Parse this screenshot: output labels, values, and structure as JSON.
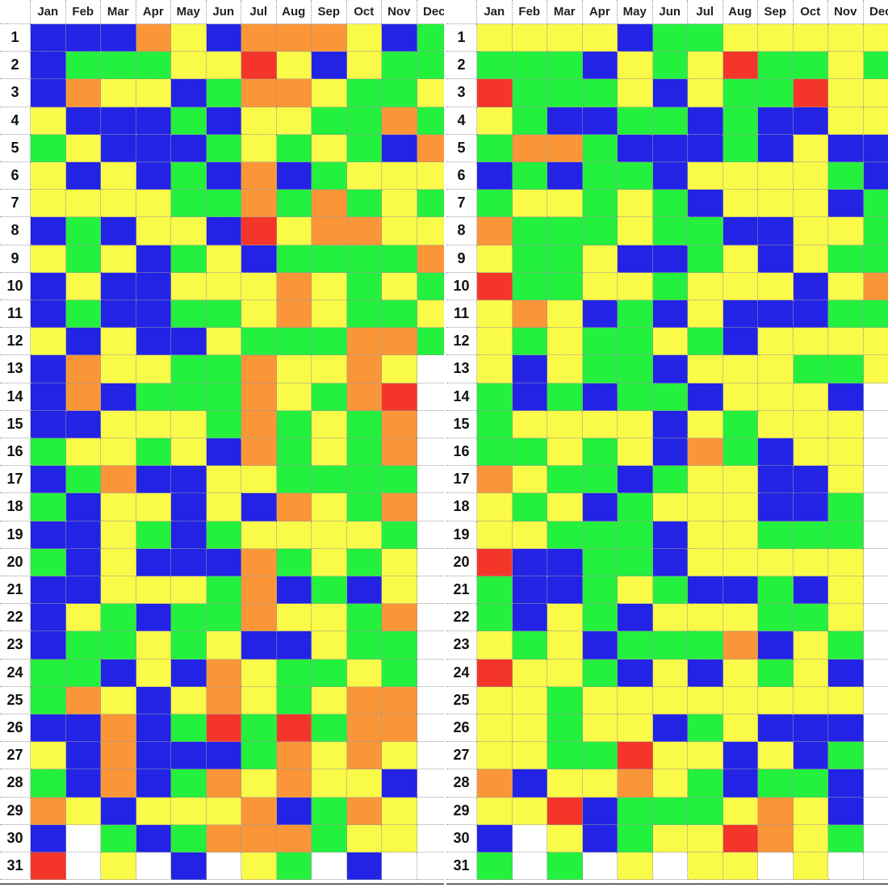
{
  "colors": {
    "B": "#2323e6",
    "G": "#24f03e",
    "Y": "#fafa48",
    "O": "#fa9638",
    "R": "#f4362a",
    "W": "#ffffff"
  },
  "grids": [
    {
      "columns": [
        "Jan",
        "Feb",
        "Mar",
        "Apr",
        "May",
        "Jun",
        "Jul",
        "Aug",
        "Sep",
        "Oct",
        "Nov",
        "Dec"
      ],
      "rows": [
        {
          "day": "1",
          "cells": "BBBOYBOOOYBG"
        },
        {
          "day": "2",
          "cells": "BGGGYYRYBYGG"
        },
        {
          "day": "3",
          "cells": "BOYYBGOOYGGY"
        },
        {
          "day": "4",
          "cells": "YBBBGBYYGGOG"
        },
        {
          "day": "5",
          "cells": "GYBBBGYGYGBO"
        },
        {
          "day": "6",
          "cells": "YBYBGBOBGYYY"
        },
        {
          "day": "7",
          "cells": "YYYYGGOGOGYG"
        },
        {
          "day": "8",
          "cells": "BGBYYBRYOOYY"
        },
        {
          "day": "9",
          "cells": "YGYBGYBGGGGO"
        },
        {
          "day": "10",
          "cells": "BYBBYYYOYGYG"
        },
        {
          "day": "11",
          "cells": "BGBBGGYOYGGY"
        },
        {
          "day": "12",
          "cells": "YBYBBYGGGOOG"
        },
        {
          "day": "13",
          "cells": "BOYYGGOYYOYW"
        },
        {
          "day": "14",
          "cells": "BOBGGGOYGORW"
        },
        {
          "day": "15",
          "cells": "BBYYYGOGYGOW"
        },
        {
          "day": "16",
          "cells": "GYYGYBOGYGOW"
        },
        {
          "day": "17",
          "cells": "BGOBBYYGGGGW"
        },
        {
          "day": "18",
          "cells": "GBYYBYBOYGOW"
        },
        {
          "day": "19",
          "cells": "BBYGBGYYYYGW"
        },
        {
          "day": "20",
          "cells": "GBYBBBOGYGYW"
        },
        {
          "day": "21",
          "cells": "BBYYYGOBGBYW"
        },
        {
          "day": "22",
          "cells": "BYGBGGOYYGOW"
        },
        {
          "day": "23",
          "cells": "BGGYGYBBYGGW"
        },
        {
          "day": "24",
          "cells": "GGBYBOYGGYGW"
        },
        {
          "day": "25",
          "cells": "GOYBYOYGYOOW"
        },
        {
          "day": "26",
          "cells": "BBOBGRGRGOOW"
        },
        {
          "day": "27",
          "cells": "YBOBBBGOYOYW"
        },
        {
          "day": "28",
          "cells": "GBOBGOYOYYBW"
        },
        {
          "day": "29",
          "cells": "OYBYYYOBGOYW"
        },
        {
          "day": "30",
          "cells": "BWGBGOOOGYYW"
        },
        {
          "day": "31",
          "cells": "RWYWBWYGWBWW"
        }
      ]
    },
    {
      "columns": [
        "Jan",
        "Feb",
        "Mar",
        "Apr",
        "May",
        "Jun",
        "Jul",
        "Aug",
        "Sep",
        "Oct",
        "Nov",
        "Dec"
      ],
      "rows": [
        {
          "day": "1",
          "cells": "YYYYBGGYYYYY"
        },
        {
          "day": "2",
          "cells": "GGGBYGYRGGYG"
        },
        {
          "day": "3",
          "cells": "RGGGYBYGGRYY"
        },
        {
          "day": "4",
          "cells": "YGBBGGBGBBYY"
        },
        {
          "day": "5",
          "cells": "GOOGBBBGBYBB"
        },
        {
          "day": "6",
          "cells": "BGBGGBYYYYGB"
        },
        {
          "day": "7",
          "cells": "GYYGYGBYYYBG"
        },
        {
          "day": "8",
          "cells": "OGGGYGGBBYYG"
        },
        {
          "day": "9",
          "cells": "YGGYBBGYBYGG"
        },
        {
          "day": "10",
          "cells": "RGGYYGYYYBYO"
        },
        {
          "day": "11",
          "cells": "YOYBGBYBBBGG"
        },
        {
          "day": "12",
          "cells": "YGYGGYGBYYYY"
        },
        {
          "day": "13",
          "cells": "YBYGGBYYYGGY"
        },
        {
          "day": "14",
          "cells": "GBGBGGBYYYBW"
        },
        {
          "day": "15",
          "cells": "GYYYYBYGYYYW"
        },
        {
          "day": "16",
          "cells": "GGYGYBOGBYYW"
        },
        {
          "day": "17",
          "cells": "OYGGBGYYBBYW"
        },
        {
          "day": "18",
          "cells": "YGYBGYYYBBGW"
        },
        {
          "day": "19",
          "cells": "YYGGGBYYGGGW"
        },
        {
          "day": "20",
          "cells": "RBBGGBYYYYYW"
        },
        {
          "day": "21",
          "cells": "GBBGYGBBGBYW"
        },
        {
          "day": "22",
          "cells": "GBYGBYYYGGYW"
        },
        {
          "day": "23",
          "cells": "YGYBGGGOBYGW"
        },
        {
          "day": "24",
          "cells": "RYYGBYBYGYBW"
        },
        {
          "day": "25",
          "cells": "YYGYYYYYYYYW"
        },
        {
          "day": "26",
          "cells": "YYGYYBGYBBBW"
        },
        {
          "day": "27",
          "cells": "YYGGRYYBYBGW"
        },
        {
          "day": "28",
          "cells": "OBYYOYGBGGBW"
        },
        {
          "day": "29",
          "cells": "YYRBGGGYOYBW"
        },
        {
          "day": "30",
          "cells": "BWYBGYYROYGW"
        },
        {
          "day": "31",
          "cells": "GWGWYWYYWYWW"
        }
      ]
    }
  ]
}
